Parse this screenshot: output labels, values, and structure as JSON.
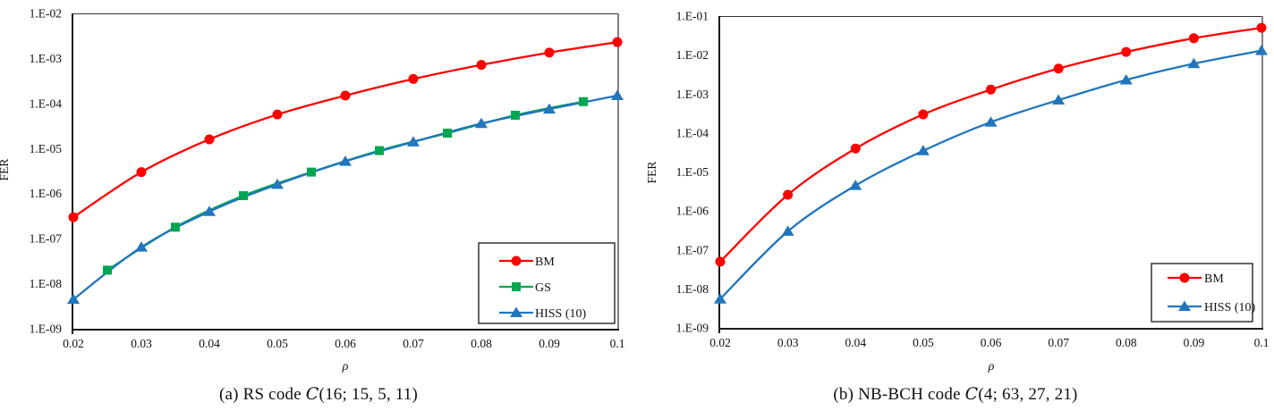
{
  "figure": {
    "background": "#ffffff",
    "text_color": "#111111"
  },
  "chart_data": [
    {
      "type": "line",
      "id": "a",
      "caption_prefix": "(a) RS code ",
      "caption_symbol": "C",
      "caption_args": "(16; 15, 5, 11)",
      "xlabel": "ρ",
      "ylabel": "FER",
      "xlim": [
        0.02,
        0.1
      ],
      "ylim": [
        1e-09,
        0.01
      ],
      "yscale": "log",
      "grid": false,
      "legend_position": "inside-bottom-right",
      "x_ticks": {
        "values": [
          0.02,
          0.03,
          0.04,
          0.05,
          0.06,
          0.07,
          0.08,
          0.09,
          0.1
        ],
        "labels": [
          "0.02",
          "0.03",
          "0.04",
          "0.05",
          "0.06",
          "0.07",
          "0.08",
          "0.09",
          "0.1"
        ]
      },
      "y_ticks": {
        "values": [
          0.01,
          0.001,
          0.0001,
          1e-05,
          1e-06,
          1e-07,
          1e-08,
          1e-09
        ],
        "labels": [
          "1.E-02",
          "1.E-03",
          "1.E-04",
          "1.E-05",
          "1.E-06",
          "1.E-07",
          "1.E-08",
          "1.E-09"
        ]
      },
      "colors": {
        "axis": "#1a1a1a",
        "frame_top": "#333333",
        "frame_right": "#808080",
        "legend_border": "#333333"
      },
      "series": [
        {
          "name": "BM",
          "color": "#fe0000",
          "marker": "circle",
          "x": [
            0.02,
            0.03,
            0.04,
            0.05,
            0.06,
            0.07,
            0.08,
            0.09,
            0.1
          ],
          "y": [
            3e-07,
            3e-06,
            1.6e-05,
            5.7e-05,
            0.00015,
            0.00035,
            0.00072,
            0.00135,
            0.0023
          ]
        },
        {
          "name": "GS",
          "color": "#00a651",
          "marker": "square",
          "x": [
            0.025,
            0.035,
            0.045,
            0.055,
            0.065,
            0.075,
            0.085,
            0.095
          ],
          "y": [
            2e-08,
            1.8e-07,
            9e-07,
            3e-06,
            9e-06,
            2.2e-05,
            5.5e-05,
            0.00011
          ]
        },
        {
          "name": "HISS (10)",
          "color": "#2176bd",
          "marker": "triangle",
          "x": [
            0.02,
            0.03,
            0.04,
            0.05,
            0.06,
            0.07,
            0.08,
            0.09,
            0.1
          ],
          "y": [
            4.5e-09,
            6.5e-08,
            4e-07,
            1.6e-06,
            5.2e-06,
            1.4e-05,
            3.6e-05,
            7.5e-05,
            0.00015
          ]
        }
      ]
    },
    {
      "type": "line",
      "id": "b",
      "caption_prefix": "(b) NB-BCH code ",
      "caption_symbol": "C",
      "caption_args": "(4; 63, 27, 21)",
      "xlabel": "ρ",
      "ylabel": "FER",
      "xlim": [
        0.02,
        0.1
      ],
      "ylim": [
        1e-09,
        0.1
      ],
      "yscale": "log",
      "grid": false,
      "legend_position": "inside-bottom-right",
      "x_ticks": {
        "values": [
          0.02,
          0.03,
          0.04,
          0.05,
          0.06,
          0.07,
          0.08,
          0.09,
          0.1
        ],
        "labels": [
          "0.02",
          "0.03",
          "0.04",
          "0.05",
          "0.06",
          "0.07",
          "0.08",
          "0.09",
          "0.1"
        ]
      },
      "y_ticks": {
        "values": [
          0.1,
          0.01,
          0.001,
          0.0001,
          1e-05,
          1e-06,
          1e-07,
          1e-08,
          1e-09
        ],
        "labels": [
          "1.E-01",
          "1.E-02",
          "1.E-03",
          "1.E-04",
          "1.E-05",
          "1.E-06",
          "1.E-07",
          "1.E-08",
          "1.E-09"
        ]
      },
      "colors": {
        "axis": "#1a1a1a",
        "frame_top": "#333333",
        "frame_right": "#808080",
        "legend_border": "#333333"
      },
      "series": [
        {
          "name": "BM",
          "color": "#fe0000",
          "marker": "circle",
          "x": [
            0.02,
            0.03,
            0.04,
            0.05,
            0.06,
            0.07,
            0.08,
            0.09,
            0.1
          ],
          "y": [
            5e-08,
            2.6e-06,
            4e-05,
            0.0003,
            0.0013,
            0.0045,
            0.012,
            0.027,
            0.05
          ]
        },
        {
          "name": "HISS (10)",
          "color": "#2176bd",
          "marker": "triangle",
          "x": [
            0.02,
            0.03,
            0.04,
            0.05,
            0.06,
            0.07,
            0.08,
            0.09,
            0.1
          ],
          "y": [
            5.5e-09,
            3e-07,
            4.5e-06,
            3.5e-05,
            0.00019,
            0.0007,
            0.0023,
            0.006,
            0.013
          ]
        }
      ]
    }
  ]
}
